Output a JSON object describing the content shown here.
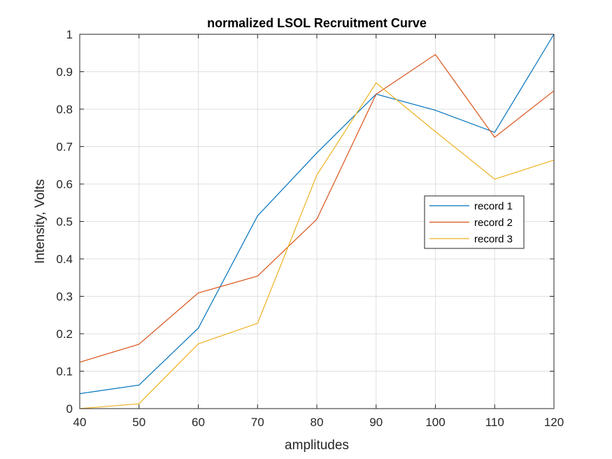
{
  "chart_data": {
    "type": "line",
    "title": "normalized LSOL Recruitment Curve",
    "xlabel": "amplitudes",
    "ylabel": "Intensity, Volts",
    "xlim": [
      40,
      120
    ],
    "ylim": [
      0,
      1
    ],
    "xticks": [
      40,
      50,
      60,
      70,
      80,
      90,
      100,
      110,
      120
    ],
    "yticks": [
      0,
      0.1,
      0.2,
      0.3,
      0.4,
      0.5,
      0.6,
      0.7,
      0.8,
      0.9,
      1
    ],
    "ytick_labels": [
      "0",
      "0.1",
      "0.2",
      "0.3",
      "0.4",
      "0.5",
      "0.6",
      "0.7",
      "0.8",
      "0.9",
      "1"
    ],
    "grid": true,
    "legend_position": "right",
    "x": [
      40,
      50,
      60,
      70,
      80,
      90,
      100,
      110,
      120
    ],
    "series": [
      {
        "name": "record 1",
        "color": "#0072BD",
        "values": [
          0.04,
          0.063,
          0.215,
          0.515,
          0.683,
          0.84,
          0.797,
          0.738,
          1.0
        ]
      },
      {
        "name": "record 2",
        "color": "#D95319",
        "values": [
          0.124,
          0.172,
          0.309,
          0.354,
          0.506,
          0.84,
          0.946,
          0.725,
          0.849
        ]
      },
      {
        "name": "record 3",
        "color": "#EDB120",
        "values": [
          0.0,
          0.013,
          0.173,
          0.228,
          0.624,
          0.87,
          0.74,
          0.613,
          0.664
        ]
      }
    ]
  }
}
